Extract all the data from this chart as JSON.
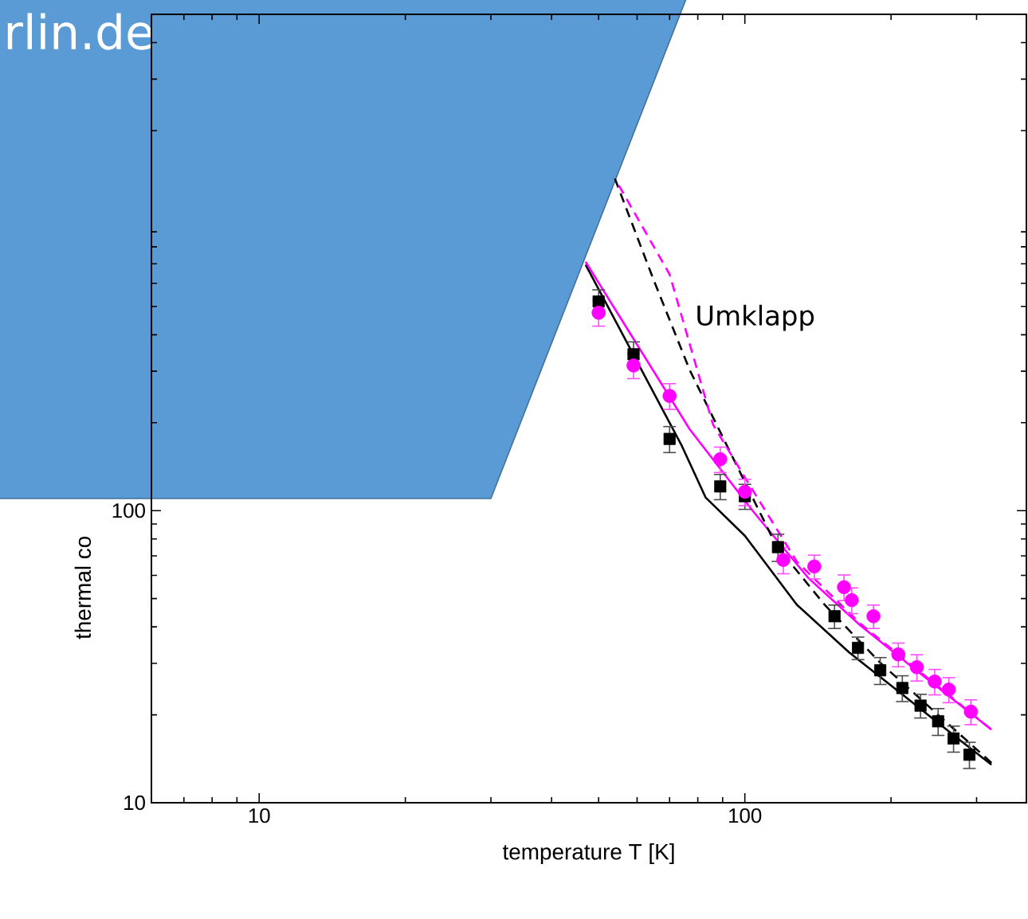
{
  "chart_data": {
    "type": "scatter",
    "xlabel": "temperature T [K]",
    "ylabel": "thermal co",
    "log": "xy",
    "xlim": [
      6,
      380
    ],
    "ylim": [
      10,
      5000
    ],
    "xticks": [
      10,
      100
    ],
    "yticks": [
      10,
      100
    ],
    "annotations": [
      "rlin.de",
      "Umklapp"
    ],
    "series": [
      {
        "color": "#000000",
        "marker": "square",
        "x": [
          50,
          59,
          70,
          89,
          100,
          117,
          153,
          171,
          190,
          211,
          230,
          250,
          269,
          290
        ],
        "values": [
          520,
          343,
          176,
          121,
          112,
          75,
          43.5,
          33.9,
          28.4,
          24.7,
          21.5,
          19,
          16.6,
          14.6
        ],
        "errors": [
          50,
          35,
          18,
          12,
          11,
          8,
          4,
          3,
          3,
          2.5,
          2,
          2,
          1.7,
          1.5
        ]
      },
      {
        "color": "#ff00ff",
        "marker": "circle",
        "x": [
          50,
          59,
          70,
          89,
          100,
          120,
          139,
          160,
          166,
          184,
          207,
          226,
          246,
          263,
          292
        ],
        "values": [
          476,
          314,
          247,
          150,
          116,
          67.8,
          64.4,
          54.7,
          49.4,
          43.5,
          32.2,
          29.1,
          26,
          24.4,
          20.5
        ],
        "errors": [
          48,
          31,
          25,
          15,
          12,
          7,
          6,
          5.5,
          5,
          4,
          3,
          3,
          2.6,
          2.4,
          2
        ]
      },
      {
        "type": "line",
        "color": "#000000",
        "line_style": "solid",
        "x": [
          47,
          74,
          83,
          100,
          128,
          164,
          213,
          273,
          322
        ],
        "values": [
          695,
          168,
          111,
          82,
          47.6,
          32.7,
          23.2,
          16.7,
          13.5
        ]
      },
      {
        "type": "line",
        "color": "#ff00ff",
        "line_style": "solid",
        "x": [
          47,
          60,
          77,
          105,
          135,
          173,
          223,
          322
        ],
        "values": [
          711,
          370,
          190,
          97.5,
          58.9,
          40.4,
          28.8,
          17.8
        ]
      },
      {
        "type": "line",
        "color": "#000000",
        "line_style": "dashed",
        "x": [
          54,
          65,
          77,
          116,
          146,
          191,
          322
        ],
        "values": [
          1370,
          612,
          303,
          76,
          47.6,
          29.9,
          13.7
        ]
      },
      {
        "type": "line",
        "color": "#ff00ff",
        "line_style": "dashed",
        "x": [
          55,
          70,
          86,
          100,
          128,
          173,
          322
        ],
        "values": [
          1300,
          644,
          197,
          130,
          66.8,
          41,
          17.8
        ]
      }
    ]
  }
}
